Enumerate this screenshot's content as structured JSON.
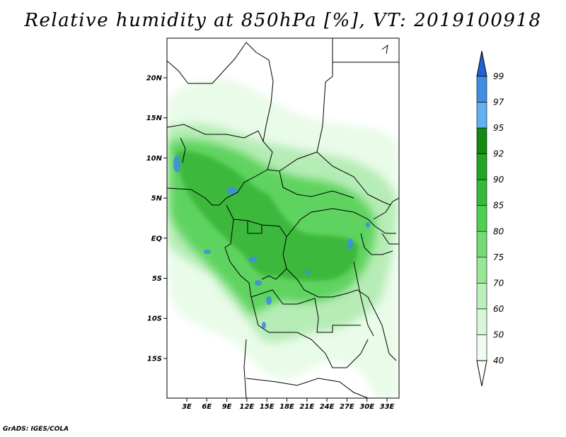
{
  "title": "Relative humidity at 850hPa [%], VT: 2019100918",
  "credit": "GrADS: IGES/COLA",
  "map": {
    "lon_labels": [
      "3E",
      "6E",
      "9E",
      "12E",
      "15E",
      "18E",
      "21E",
      "24E",
      "27E",
      "30E",
      "33E"
    ],
    "lat_labels": [
      "20N",
      "15N",
      "10N",
      "5N",
      "EQ",
      "5S",
      "10S",
      "15S"
    ],
    "colors": {
      "land_white": "#ffffff",
      "moist_light": "#e6f9e6",
      "moist_mid": "#aee9ae",
      "moist_high": "#4fcf4f",
      "moist_peak": "#1f9e1f",
      "saturated": "#3f8fe0"
    }
  },
  "colorbar": {
    "labels": [
      "99",
      "97",
      "95",
      "92",
      "90",
      "85",
      "80",
      "75",
      "70",
      "60",
      "50",
      "40"
    ],
    "colors": [
      "#1f63d6",
      "#3f8fe0",
      "#62b2f2",
      "#108a10",
      "#22a622",
      "#37bb37",
      "#4fcf4f",
      "#72dc72",
      "#96e796",
      "#b9f0b9",
      "#d6f7d6",
      "#effcef"
    ]
  }
}
